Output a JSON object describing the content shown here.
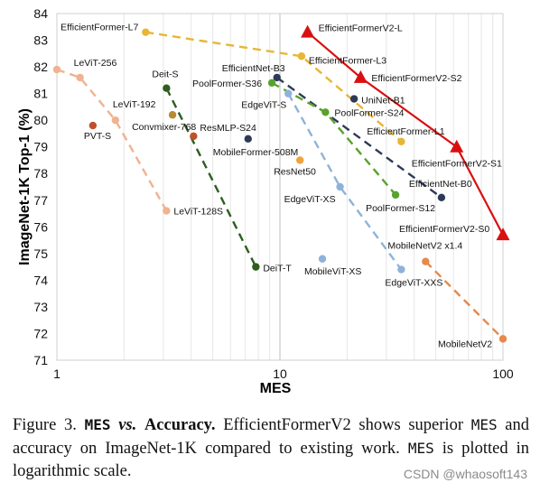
{
  "chart_data": {
    "type": "scatter",
    "xlabel": "MES",
    "ylabel": "ImageNet-1K Top-1 (%)",
    "xscale": "log",
    "xlim": [
      1,
      100
    ],
    "ylim": [
      71,
      84
    ],
    "x_ticks": [
      {
        "value": 1,
        "label": "1"
      },
      {
        "value": 10,
        "label": "10"
      },
      {
        "value": 100,
        "label": "100"
      }
    ],
    "y_ticks": [
      71,
      72,
      73,
      74,
      75,
      76,
      77,
      78,
      79,
      80,
      81,
      82,
      83,
      84
    ],
    "grid": {
      "vertical": true,
      "horizontal": false
    },
    "series": [
      {
        "color": "#e7b633",
        "dash": true,
        "marker": "circle",
        "points": [
          {
            "x": 2.5,
            "y": 83.3,
            "label": "EfficientFormer-L7"
          },
          {
            "x": 12.5,
            "y": 82.4,
            "label": "EfficientFormer-L3"
          },
          {
            "x": 35,
            "y": 79.2,
            "label": "EfficientFormer-L1"
          }
        ]
      },
      {
        "color": "#d91010",
        "dash": false,
        "marker": "triangle",
        "points": [
          {
            "x": 13.3,
            "y": 83.3,
            "label": "EfficientFormerV2-L"
          },
          {
            "x": 23,
            "y": 81.6,
            "label": "EfficientFormerV2-S2"
          },
          {
            "x": 62,
            "y": 79.0,
            "label": "EfficientFormerV2-S1"
          },
          {
            "x": 100,
            "y": 75.7,
            "label": "EfficientFormerV2-S0"
          }
        ]
      },
      {
        "color": "#f0b28f",
        "dash": true,
        "marker": "circle",
        "points": [
          {
            "x": 1.0,
            "y": 81.9,
            "label": ""
          },
          {
            "x": 1.27,
            "y": 81.6,
            "label": "LeViT-256"
          },
          {
            "x": 1.83,
            "y": 80.0,
            "label": "LeViT-192"
          },
          {
            "x": 3.1,
            "y": 76.6,
            "label": "LeViT-128S"
          }
        ]
      },
      {
        "color": "#2d5e1e",
        "dash": true,
        "marker": "circle",
        "points": [
          {
            "x": 3.1,
            "y": 81.2,
            "label": "Deit-S"
          },
          {
            "x": 7.8,
            "y": 74.5,
            "label": "DeiT-T"
          }
        ]
      },
      {
        "color": "#2e3a56",
        "dash": true,
        "marker": "circle",
        "points": [
          {
            "x": 9.7,
            "y": 81.6,
            "label": "EfficientNet-B3"
          },
          {
            "x": 53,
            "y": 77.1,
            "label": "EfficientNet-B0"
          }
        ]
      },
      {
        "color": "#5aa12e",
        "dash": true,
        "marker": "circle",
        "points": [
          {
            "x": 9.2,
            "y": 81.4,
            "label": "PoolFormer-S36"
          },
          {
            "x": 16,
            "y": 80.3,
            "label": "PoolFormer-S24"
          },
          {
            "x": 33,
            "y": 77.2,
            "label": "PoolFormer-S12"
          }
        ]
      },
      {
        "color": "#8fb2d9",
        "dash": true,
        "marker": "circle",
        "points": [
          {
            "x": 10.9,
            "y": 81.0,
            "label": "EdgeViT-S"
          },
          {
            "x": 18.6,
            "y": 77.5,
            "label": "EdgeViT-XS"
          },
          {
            "x": 35,
            "y": 74.4,
            "label": "EdgeViT-XXS"
          }
        ]
      },
      {
        "color": "#e8884a",
        "dash": true,
        "marker": "circle",
        "points": [
          {
            "x": 45,
            "y": 74.7,
            "label": "MobileNetV2 x1.4"
          },
          {
            "x": 100,
            "y": 71.8,
            "label": "MobileNetV2"
          }
        ]
      },
      {
        "color": "#c0502a",
        "dash": false,
        "marker": "circle",
        "points": [
          {
            "x": 1.45,
            "y": 79.8,
            "label": "PVT-S"
          }
        ]
      },
      {
        "color": "#b78a34",
        "dash": false,
        "marker": "circle",
        "points": [
          {
            "x": 3.3,
            "y": 80.2,
            "label": "Convmixer-768"
          }
        ]
      },
      {
        "color": "#c0502a",
        "dash": false,
        "marker": "circle",
        "points": [
          {
            "x": 4.1,
            "y": 79.4,
            "label": "ResMLP-S24"
          }
        ]
      },
      {
        "color": "#2e3a56",
        "dash": false,
        "marker": "circle",
        "points": [
          {
            "x": 7.2,
            "y": 79.3,
            "label": "MobileFormer-508M"
          }
        ]
      },
      {
        "color": "#f2a23a",
        "dash": false,
        "marker": "circle",
        "points": [
          {
            "x": 12.3,
            "y": 78.5,
            "label": "ResNet50"
          }
        ]
      },
      {
        "color": "#2e3a56",
        "dash": false,
        "marker": "circle",
        "points": [
          {
            "x": 21.5,
            "y": 80.8,
            "label": "UniNet-B1"
          }
        ]
      },
      {
        "color": "#8fb2d9",
        "dash": false,
        "marker": "circle",
        "points": [
          {
            "x": 15.5,
            "y": 74.8,
            "label": "MobileViT-XS"
          }
        ]
      }
    ]
  },
  "caption": {
    "figure_label": "Figure 3.",
    "title_mes": "MES",
    "title_vs": "vs.",
    "title_accuracy": "Accuracy.",
    "text_1": "EfficientFormerV2 shows superior",
    "mes_1": "MES",
    "text_2": "and accuracy on ImageNet-1K compared to existing work.",
    "mes_2": "MES",
    "text_3": "is plotted in logarithmic scale."
  },
  "watermark": "CSDN @whaosoft143"
}
